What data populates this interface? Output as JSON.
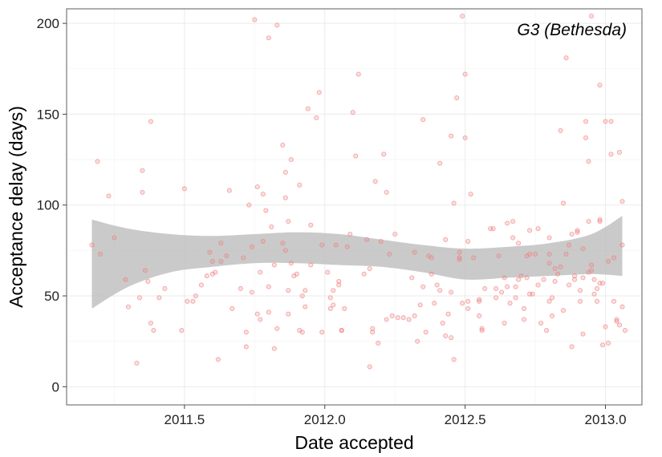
{
  "chart_data": {
    "type": "scatter",
    "title": "",
    "panel_label": "G3 (Bethesda)",
    "xlabel": "Date accepted",
    "ylabel": "Acceptance delay (days)",
    "xlim": [
      2011.08,
      2013.13
    ],
    "ylim": [
      -10,
      208
    ],
    "x_ticks": [
      {
        "value": 2011.5,
        "label": "2011.5"
      },
      {
        "value": 2012.0,
        "label": "2012.0"
      },
      {
        "value": 2012.5,
        "label": "2012.5"
      },
      {
        "value": 2013.0,
        "label": "2013.0"
      }
    ],
    "y_ticks": [
      {
        "value": 0,
        "label": "0"
      },
      {
        "value": 50,
        "label": "50"
      },
      {
        "value": 100,
        "label": "100"
      },
      {
        "value": 150,
        "label": "150"
      },
      {
        "value": 200,
        "label": "200"
      }
    ],
    "grid": true,
    "point_color": "#f08080",
    "band_color": "#bdbdbd",
    "points": [
      [
        2011.17,
        78
      ],
      [
        2011.19,
        124
      ],
      [
        2011.2,
        73
      ],
      [
        2011.23,
        105
      ],
      [
        2011.25,
        82
      ],
      [
        2011.29,
        59
      ],
      [
        2011.3,
        44
      ],
      [
        2011.33,
        13
      ],
      [
        2011.34,
        49
      ],
      [
        2011.35,
        119
      ],
      [
        2011.35,
        107
      ],
      [
        2011.36,
        64
      ],
      [
        2011.37,
        58
      ],
      [
        2011.38,
        146
      ],
      [
        2011.38,
        35
      ],
      [
        2011.39,
        31
      ],
      [
        2011.41,
        49
      ],
      [
        2011.43,
        54
      ],
      [
        2011.49,
        31
      ],
      [
        2011.5,
        109
      ],
      [
        2011.51,
        47
      ],
      [
        2011.53,
        47
      ],
      [
        2011.54,
        50
      ],
      [
        2011.56,
        56
      ],
      [
        2011.58,
        61
      ],
      [
        2011.59,
        74
      ],
      [
        2011.6,
        69
      ],
      [
        2011.6,
        62
      ],
      [
        2011.61,
        63
      ],
      [
        2011.62,
        15
      ],
      [
        2011.63,
        79
      ],
      [
        2011.63,
        69
      ],
      [
        2011.65,
        72
      ],
      [
        2011.66,
        108
      ],
      [
        2011.67,
        43
      ],
      [
        2011.7,
        54
      ],
      [
        2011.71,
        71
      ],
      [
        2011.72,
        30
      ],
      [
        2011.72,
        22
      ],
      [
        2011.73,
        100
      ],
      [
        2011.74,
        52
      ],
      [
        2011.74,
        77
      ],
      [
        2011.75,
        202
      ],
      [
        2011.76,
        110
      ],
      [
        2011.76,
        40
      ],
      [
        2011.77,
        63
      ],
      [
        2011.77,
        37
      ],
      [
        2011.78,
        106
      ],
      [
        2011.78,
        80
      ],
      [
        2011.79,
        97
      ],
      [
        2011.8,
        192
      ],
      [
        2011.8,
        55
      ],
      [
        2011.8,
        41
      ],
      [
        2011.81,
        88
      ],
      [
        2011.82,
        67
      ],
      [
        2011.82,
        21
      ],
      [
        2011.83,
        199
      ],
      [
        2011.83,
        32
      ],
      [
        2011.85,
        133
      ],
      [
        2011.85,
        79
      ],
      [
        2011.86,
        75
      ],
      [
        2011.86,
        118
      ],
      [
        2011.86,
        104
      ],
      [
        2011.87,
        91
      ],
      [
        2011.87,
        40
      ],
      [
        2011.87,
        53
      ],
      [
        2011.88,
        125
      ],
      [
        2011.88,
        68
      ],
      [
        2011.89,
        61
      ],
      [
        2011.9,
        62
      ],
      [
        2011.91,
        111
      ],
      [
        2011.91,
        31
      ],
      [
        2011.92,
        30
      ],
      [
        2011.92,
        50
      ],
      [
        2011.93,
        53
      ],
      [
        2011.93,
        44
      ],
      [
        2011.94,
        153
      ],
      [
        2011.95,
        89
      ],
      [
        2011.95,
        67
      ],
      [
        2011.97,
        148
      ],
      [
        2011.98,
        162
      ],
      [
        2011.99,
        78
      ],
      [
        2011.99,
        30
      ],
      [
        2012.01,
        63
      ],
      [
        2012.02,
        49
      ],
      [
        2012.02,
        43
      ],
      [
        2012.03,
        45
      ],
      [
        2012.03,
        53
      ],
      [
        2012.04,
        78
      ],
      [
        2012.05,
        56
      ],
      [
        2012.05,
        58
      ],
      [
        2012.06,
        31
      ],
      [
        2012.06,
        31
      ],
      [
        2012.07,
        43
      ],
      [
        2012.08,
        77
      ],
      [
        2012.09,
        84
      ],
      [
        2012.1,
        151
      ],
      [
        2012.11,
        127
      ],
      [
        2012.12,
        172
      ],
      [
        2012.14,
        62
      ],
      [
        2012.15,
        81
      ],
      [
        2012.16,
        65
      ],
      [
        2012.16,
        11
      ],
      [
        2012.17,
        32
      ],
      [
        2012.17,
        30
      ],
      [
        2012.18,
        113
      ],
      [
        2012.19,
        24
      ],
      [
        2012.2,
        80
      ],
      [
        2012.21,
        128
      ],
      [
        2012.22,
        37
      ],
      [
        2012.22,
        107
      ],
      [
        2012.23,
        73
      ],
      [
        2012.24,
        39
      ],
      [
        2012.25,
        84
      ],
      [
        2012.26,
        38
      ],
      [
        2012.28,
        38
      ],
      [
        2012.3,
        37
      ],
      [
        2012.31,
        60
      ],
      [
        2012.32,
        74
      ],
      [
        2012.32,
        39
      ],
      [
        2012.33,
        25
      ],
      [
        2012.34,
        45
      ],
      [
        2012.35,
        147
      ],
      [
        2012.35,
        55
      ],
      [
        2012.36,
        30
      ],
      [
        2012.37,
        72
      ],
      [
        2012.38,
        71
      ],
      [
        2012.38,
        62
      ],
      [
        2012.39,
        46
      ],
      [
        2012.4,
        56
      ],
      [
        2012.41,
        53
      ],
      [
        2012.41,
        123
      ],
      [
        2012.42,
        35
      ],
      [
        2012.43,
        28
      ],
      [
        2012.43,
        81
      ],
      [
        2012.44,
        40
      ],
      [
        2012.45,
        52
      ],
      [
        2012.45,
        27
      ],
      [
        2012.45,
        138
      ],
      [
        2012.46,
        101
      ],
      [
        2012.46,
        15
      ],
      [
        2012.47,
        159
      ],
      [
        2012.48,
        74
      ],
      [
        2012.48,
        71
      ],
      [
        2012.48,
        70
      ],
      [
        2012.49,
        204
      ],
      [
        2012.49,
        46
      ],
      [
        2012.5,
        137
      ],
      [
        2012.5,
        172
      ],
      [
        2012.51,
        43
      ],
      [
        2012.51,
        47
      ],
      [
        2012.51,
        80
      ],
      [
        2012.52,
        106
      ],
      [
        2012.53,
        71
      ],
      [
        2012.55,
        48
      ],
      [
        2012.55,
        47
      ],
      [
        2012.55,
        39
      ],
      [
        2012.56,
        31
      ],
      [
        2012.56,
        32
      ],
      [
        2012.57,
        54
      ],
      [
        2012.59,
        87
      ],
      [
        2012.6,
        87
      ],
      [
        2012.61,
        49
      ],
      [
        2012.61,
        54
      ],
      [
        2012.62,
        72
      ],
      [
        2012.63,
        52
      ],
      [
        2012.64,
        35
      ],
      [
        2012.64,
        60
      ],
      [
        2012.65,
        55
      ],
      [
        2012.65,
        90
      ],
      [
        2012.66,
        46
      ],
      [
        2012.67,
        91
      ],
      [
        2012.67,
        82
      ],
      [
        2012.68,
        49
      ],
      [
        2012.68,
        55
      ],
      [
        2012.69,
        59
      ],
      [
        2012.69,
        79
      ],
      [
        2012.7,
        61
      ],
      [
        2012.71,
        43
      ],
      [
        2012.71,
        37
      ],
      [
        2012.72,
        60
      ],
      [
        2012.72,
        72
      ],
      [
        2012.73,
        86
      ],
      [
        2012.73,
        73
      ],
      [
        2012.73,
        51
      ],
      [
        2012.74,
        51
      ],
      [
        2012.75,
        73
      ],
      [
        2012.76,
        56
      ],
      [
        2012.76,
        87
      ],
      [
        2012.77,
        35
      ],
      [
        2012.78,
        59
      ],
      [
        2012.79,
        31
      ],
      [
        2012.8,
        68
      ],
      [
        2012.8,
        73
      ],
      [
        2012.8,
        47
      ],
      [
        2012.8,
        82
      ],
      [
        2012.81,
        49
      ],
      [
        2012.81,
        39
      ],
      [
        2012.82,
        58
      ],
      [
        2012.82,
        65
      ],
      [
        2012.83,
        62
      ],
      [
        2012.84,
        141
      ],
      [
        2012.84,
        66
      ],
      [
        2012.85,
        42
      ],
      [
        2012.85,
        101
      ],
      [
        2012.86,
        181
      ],
      [
        2012.86,
        73
      ],
      [
        2012.87,
        56
      ],
      [
        2012.87,
        78
      ],
      [
        2012.88,
        22
      ],
      [
        2012.88,
        84
      ],
      [
        2012.89,
        59
      ],
      [
        2012.89,
        61
      ],
      [
        2012.9,
        86
      ],
      [
        2012.9,
        85
      ],
      [
        2012.91,
        53
      ],
      [
        2012.91,
        47
      ],
      [
        2012.92,
        76
      ],
      [
        2012.92,
        29
      ],
      [
        2012.92,
        60
      ],
      [
        2012.93,
        146
      ],
      [
        2012.93,
        137
      ],
      [
        2012.94,
        91
      ],
      [
        2012.94,
        63
      ],
      [
        2012.94,
        124
      ],
      [
        2012.95,
        204
      ],
      [
        2012.95,
        64
      ],
      [
        2012.95,
        67
      ],
      [
        2012.96,
        59
      ],
      [
        2012.96,
        51
      ],
      [
        2012.97,
        47
      ],
      [
        2012.97,
        54
      ],
      [
        2012.98,
        92
      ],
      [
        2012.98,
        91
      ],
      [
        2012.98,
        166
      ],
      [
        2012.98,
        57
      ],
      [
        2012.99,
        23
      ],
      [
        2012.99,
        57
      ],
      [
        2013.0,
        33
      ],
      [
        2013.0,
        146
      ],
      [
        2013.01,
        69
      ],
      [
        2013.01,
        24
      ],
      [
        2013.02,
        128
      ],
      [
        2013.02,
        146
      ],
      [
        2013.03,
        47
      ],
      [
        2013.03,
        71
      ],
      [
        2013.04,
        36
      ],
      [
        2013.04,
        37
      ],
      [
        2013.05,
        34
      ],
      [
        2013.05,
        129
      ],
      [
        2013.06,
        44
      ],
      [
        2013.06,
        102
      ],
      [
        2013.06,
        78
      ],
      [
        2013.07,
        31
      ]
    ],
    "smooth_band": {
      "x": [
        2011.17,
        2011.3,
        2011.45,
        2011.6,
        2011.75,
        2011.9,
        2012.05,
        2012.2,
        2012.35,
        2012.5,
        2012.65,
        2012.8,
        2012.95,
        2013.06
      ],
      "upper": [
        92,
        87,
        84,
        83,
        84,
        85,
        84,
        81,
        78,
        76,
        77,
        79,
        84,
        94
      ],
      "lower": [
        43,
        55,
        63,
        66,
        68,
        68,
        67,
        66,
        63,
        59,
        60,
        61,
        62,
        61
      ]
    }
  }
}
